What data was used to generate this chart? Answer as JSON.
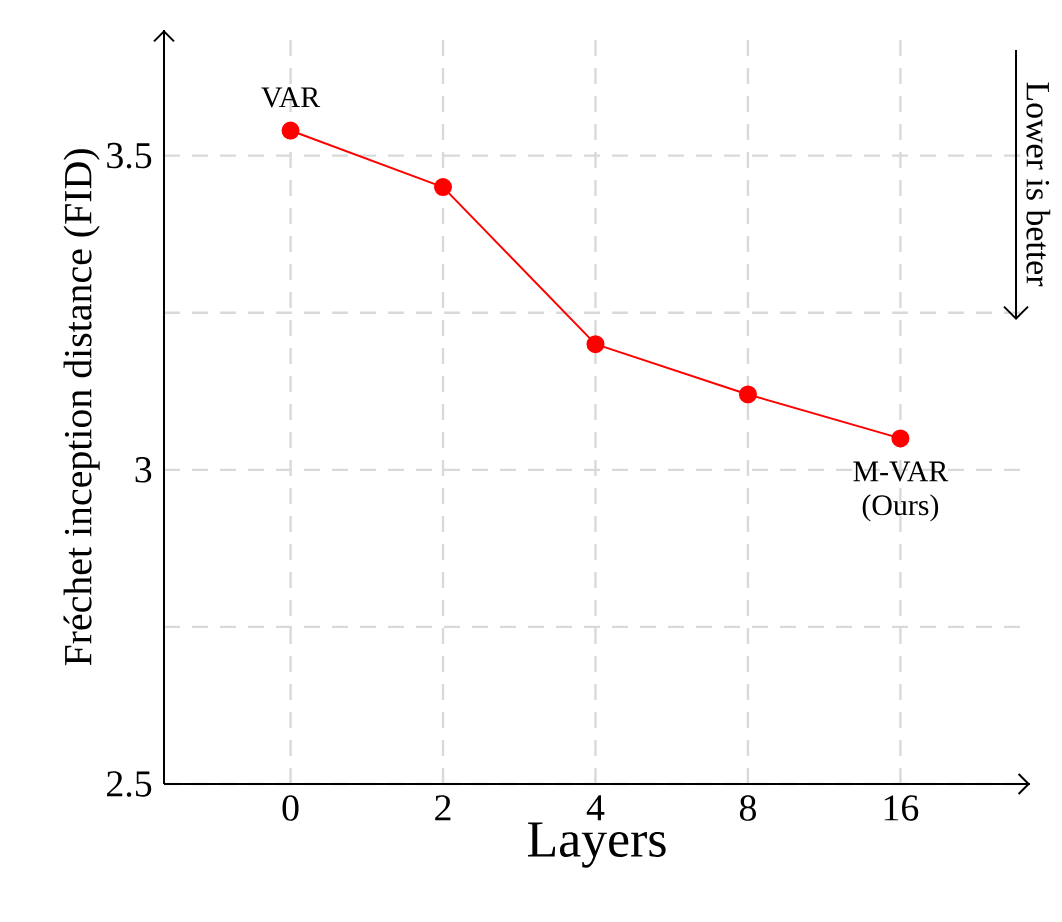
{
  "chart_data": {
    "type": "line",
    "xlabel": "Layers",
    "ylabel": "Fréchet inception distance (FID)",
    "categories": [
      "0",
      "2",
      "4",
      "8",
      "16"
    ],
    "values": [
      3.54,
      3.45,
      3.2,
      3.12,
      3.05
    ],
    "color": "#ff0000",
    "ylim": [
      2.5,
      3.7
    ],
    "yticks": [
      2.5,
      {
        "value": 2.75,
        "label": null
      },
      3,
      {
        "value": 3.25,
        "label": null
      },
      3.5
    ],
    "grid": true,
    "marker": "circle",
    "line_style": "solid",
    "annotations": [
      {
        "text": "VAR",
        "x": "0",
        "y": 3.54
      },
      {
        "text": "M-VAR (Ours)",
        "x": "16",
        "y": 3.05
      },
      "Lower is better"
    ]
  }
}
